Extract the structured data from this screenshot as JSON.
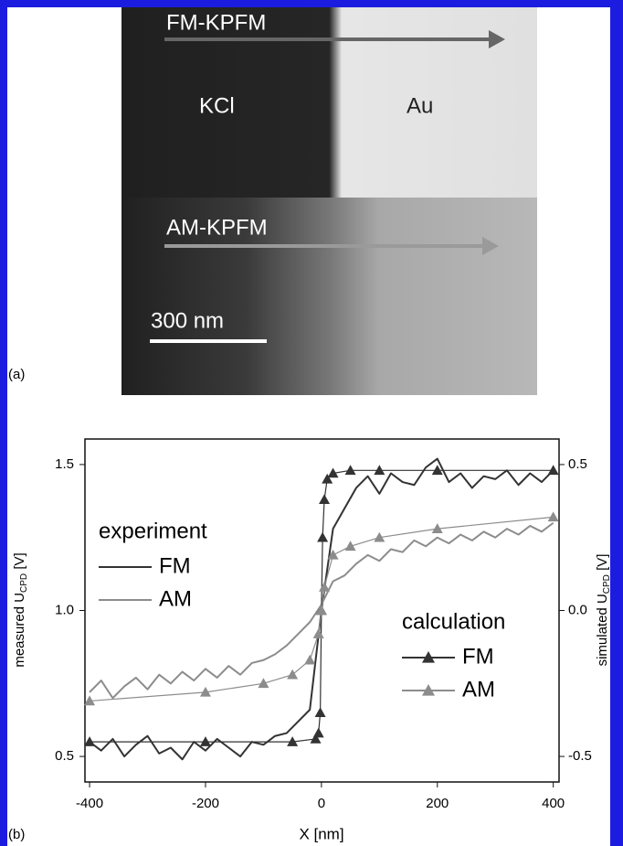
{
  "panel_a": {
    "label": "(a)",
    "fm_mode": "FM-KPFM",
    "am_mode": "AM-KPFM",
    "left_material": "KCl",
    "right_material": "Au",
    "scale_bar": "300 nm"
  },
  "chart_data": {
    "type": "line",
    "panel_label": "(b)",
    "xlabel": "X [nm]",
    "ylabel": {
      "main": "measured U",
      "sub": "CPD",
      "unit": " [V]"
    },
    "y2label": {
      "main": "simulated U",
      "sub": "CPD",
      "unit": " [V]"
    },
    "xlim": [
      -408,
      410
    ],
    "xticks": [
      -400,
      -200,
      0,
      200,
      400
    ],
    "ylim": [
      0.4125,
      1.5875
    ],
    "yticks": [
      0.5,
      {
        "value": 1,
        "label": "1.0"
      },
      1.5
    ],
    "y2lim": [
      -0.5875,
      0.5875
    ],
    "y2ticks": [
      -0.5,
      {
        "value": 0,
        "label": "0.0"
      },
      0.5
    ],
    "legend_titles": [
      "experiment",
      "calculation"
    ],
    "series": [
      {
        "name": "FM",
        "color": "#333333",
        "group": 0,
        "x": [
          -400,
          -380,
          -360,
          -340,
          -320,
          -300,
          -280,
          -260,
          -240,
          -220,
          -200,
          -180,
          -160,
          -140,
          -120,
          -100,
          -80,
          -60,
          -40,
          -20,
          0,
          20,
          40,
          60,
          80,
          100,
          120,
          140,
          160,
          180,
          200,
          220,
          240,
          260,
          280,
          300,
          320,
          340,
          360,
          380,
          400
        ],
        "values": [
          0.55,
          0.52,
          0.56,
          0.5,
          0.54,
          0.57,
          0.51,
          0.53,
          0.49,
          0.55,
          0.52,
          0.56,
          0.53,
          0.5,
          0.55,
          0.54,
          0.57,
          0.58,
          0.62,
          0.66,
          1.0,
          1.28,
          1.35,
          1.42,
          1.46,
          1.4,
          1.47,
          1.44,
          1.43,
          1.49,
          1.52,
          1.44,
          1.47,
          1.42,
          1.46,
          1.45,
          1.48,
          1.43,
          1.47,
          1.44,
          1.48
        ]
      },
      {
        "name": "AM",
        "color": "#8c8c8c",
        "group": 0,
        "x": [
          -400,
          -380,
          -360,
          -340,
          -320,
          -300,
          -280,
          -260,
          -240,
          -220,
          -200,
          -180,
          -160,
          -140,
          -120,
          -100,
          -80,
          -60,
          -40,
          -20,
          0,
          20,
          40,
          60,
          80,
          100,
          120,
          140,
          160,
          180,
          200,
          220,
          240,
          260,
          280,
          300,
          320,
          340,
          360,
          380,
          400
        ],
        "values": [
          0.72,
          0.76,
          0.7,
          0.74,
          0.77,
          0.73,
          0.78,
          0.75,
          0.79,
          0.76,
          0.8,
          0.77,
          0.81,
          0.78,
          0.82,
          0.83,
          0.85,
          0.88,
          0.92,
          0.96,
          1.02,
          1.1,
          1.12,
          1.16,
          1.19,
          1.17,
          1.21,
          1.2,
          1.24,
          1.22,
          1.25,
          1.23,
          1.26,
          1.24,
          1.27,
          1.25,
          1.28,
          1.26,
          1.29,
          1.27,
          1.3
        ]
      },
      {
        "name": "FM",
        "color": "#333333",
        "group": 1,
        "axis": "y2",
        "marker": "triangle",
        "x": [
          -400,
          -200,
          -50,
          -10,
          -5,
          -2,
          0,
          2,
          5,
          10,
          20,
          50,
          100,
          200,
          400
        ],
        "values": [
          -0.45,
          -0.45,
          -0.45,
          -0.44,
          -0.42,
          -0.35,
          0.0,
          0.25,
          0.38,
          0.45,
          0.47,
          0.48,
          0.48,
          0.48,
          0.48
        ]
      },
      {
        "name": "AM",
        "color": "#8c8c8c",
        "group": 1,
        "axis": "y2",
        "marker": "triangle",
        "x": [
          -400,
          -200,
          -100,
          -50,
          -20,
          -5,
          0,
          5,
          20,
          50,
          100,
          200,
          400
        ],
        "values": [
          -0.31,
          -0.28,
          -0.25,
          -0.22,
          -0.17,
          -0.08,
          0,
          0.08,
          0.19,
          0.22,
          0.25,
          0.28,
          0.32
        ]
      }
    ]
  }
}
